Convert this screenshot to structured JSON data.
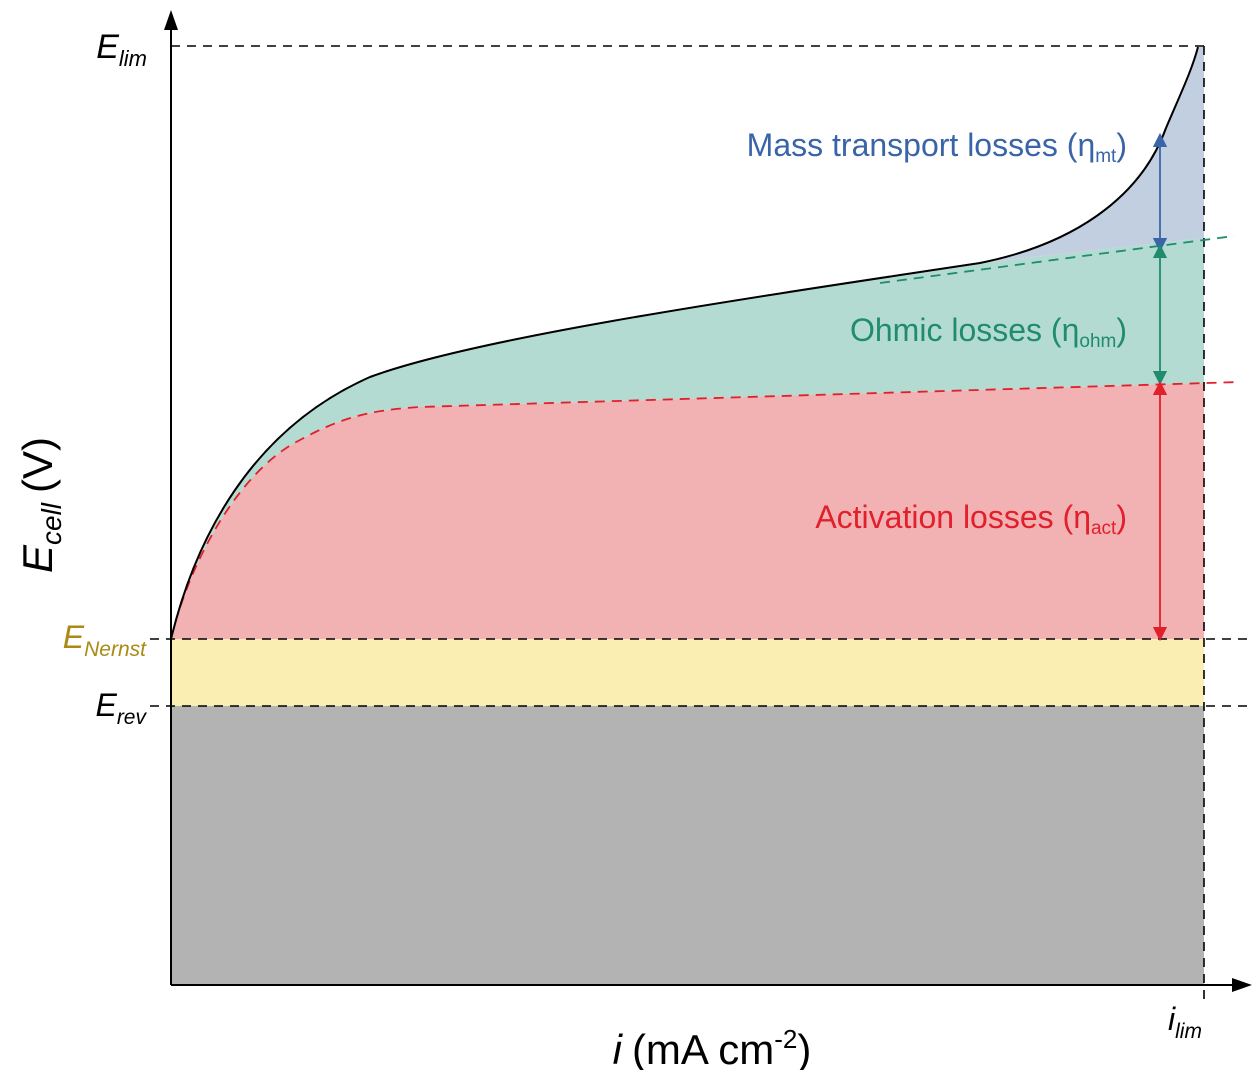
{
  "colors": {
    "mass_transport": "#3a64a8",
    "mass_transport_fill": "#c2cfe0",
    "ohmic": "#1f8c6e",
    "ohmic_fill": "#b4dbd2",
    "activation": "#e0202a",
    "activation_fill": "#f2b2b4",
    "nernst_gap_fill": "#faeeb3",
    "below_rev_fill": "#b3b3b3",
    "e_nernst_label": "#a88a14",
    "axis": "#000000"
  },
  "axes": {
    "y_label": {
      "main": "E",
      "sub": "cell",
      "unit": "(V)"
    },
    "x_label": {
      "main": "i",
      "unit": "(mA cm",
      "sup": "-2",
      "close": ")"
    }
  },
  "levels": {
    "e_lim": {
      "main": "E",
      "sub": "lim"
    },
    "e_nernst": {
      "main": "E",
      "sub": "Nernst"
    },
    "e_rev": {
      "main": "E",
      "sub": "rev"
    },
    "i_lim": {
      "main": "i",
      "sub": "lim"
    }
  },
  "regions": {
    "mass_transport": {
      "label": "Mass transport losses (η",
      "sub": "mt",
      "close": ")"
    },
    "ohmic": {
      "label": "Ohmic losses (η",
      "sub": "ohm",
      "close": ")"
    },
    "activation": {
      "label": "Activation losses (η",
      "sub": "act",
      "close": ")"
    }
  }
}
